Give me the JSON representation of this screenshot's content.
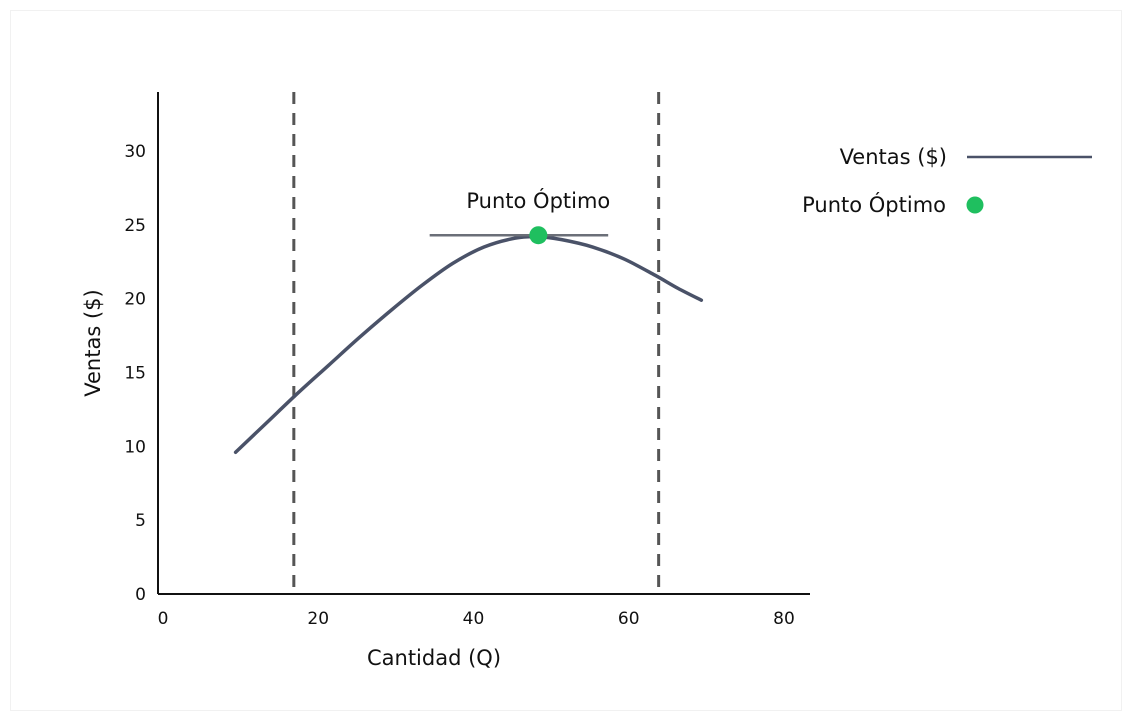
{
  "chart_data": {
    "type": "line",
    "title": "",
    "xlabel": "Cantidad (Q)",
    "ylabel": "Ventas ($)",
    "xlim": [
      0,
      84
    ],
    "ylim": [
      0,
      34
    ],
    "x_ticks": [
      0,
      20,
      40,
      60,
      80
    ],
    "y_ticks": [
      0,
      5,
      10,
      15,
      20,
      25,
      30
    ],
    "grid": false,
    "legend_position": "top-right",
    "series": [
      {
        "name": "Ventas ($)",
        "color": "#4a5268",
        "x": [
          10,
          14,
          18,
          22,
          26,
          30,
          34,
          38,
          42,
          46,
          49,
          52,
          56,
          60,
          64,
          67,
          70
        ],
        "y": [
          9.6,
          11.6,
          13.6,
          15.5,
          17.4,
          19.2,
          20.9,
          22.4,
          23.5,
          24.1,
          24.2,
          24.0,
          23.5,
          22.7,
          21.6,
          20.7,
          19.9
        ]
      }
    ],
    "optimum_point": {
      "name": "Punto Óptimo",
      "label": "Punto Óptimo",
      "x": 49,
      "y": 24.3,
      "color": "#1fbf5f",
      "tangent_x_range": [
        35,
        58
      ]
    },
    "vertical_lines": [
      {
        "x": 17.5,
        "style": "dashed",
        "color": "#555555"
      },
      {
        "x": 64.5,
        "style": "dashed",
        "color": "#555555"
      }
    ]
  }
}
